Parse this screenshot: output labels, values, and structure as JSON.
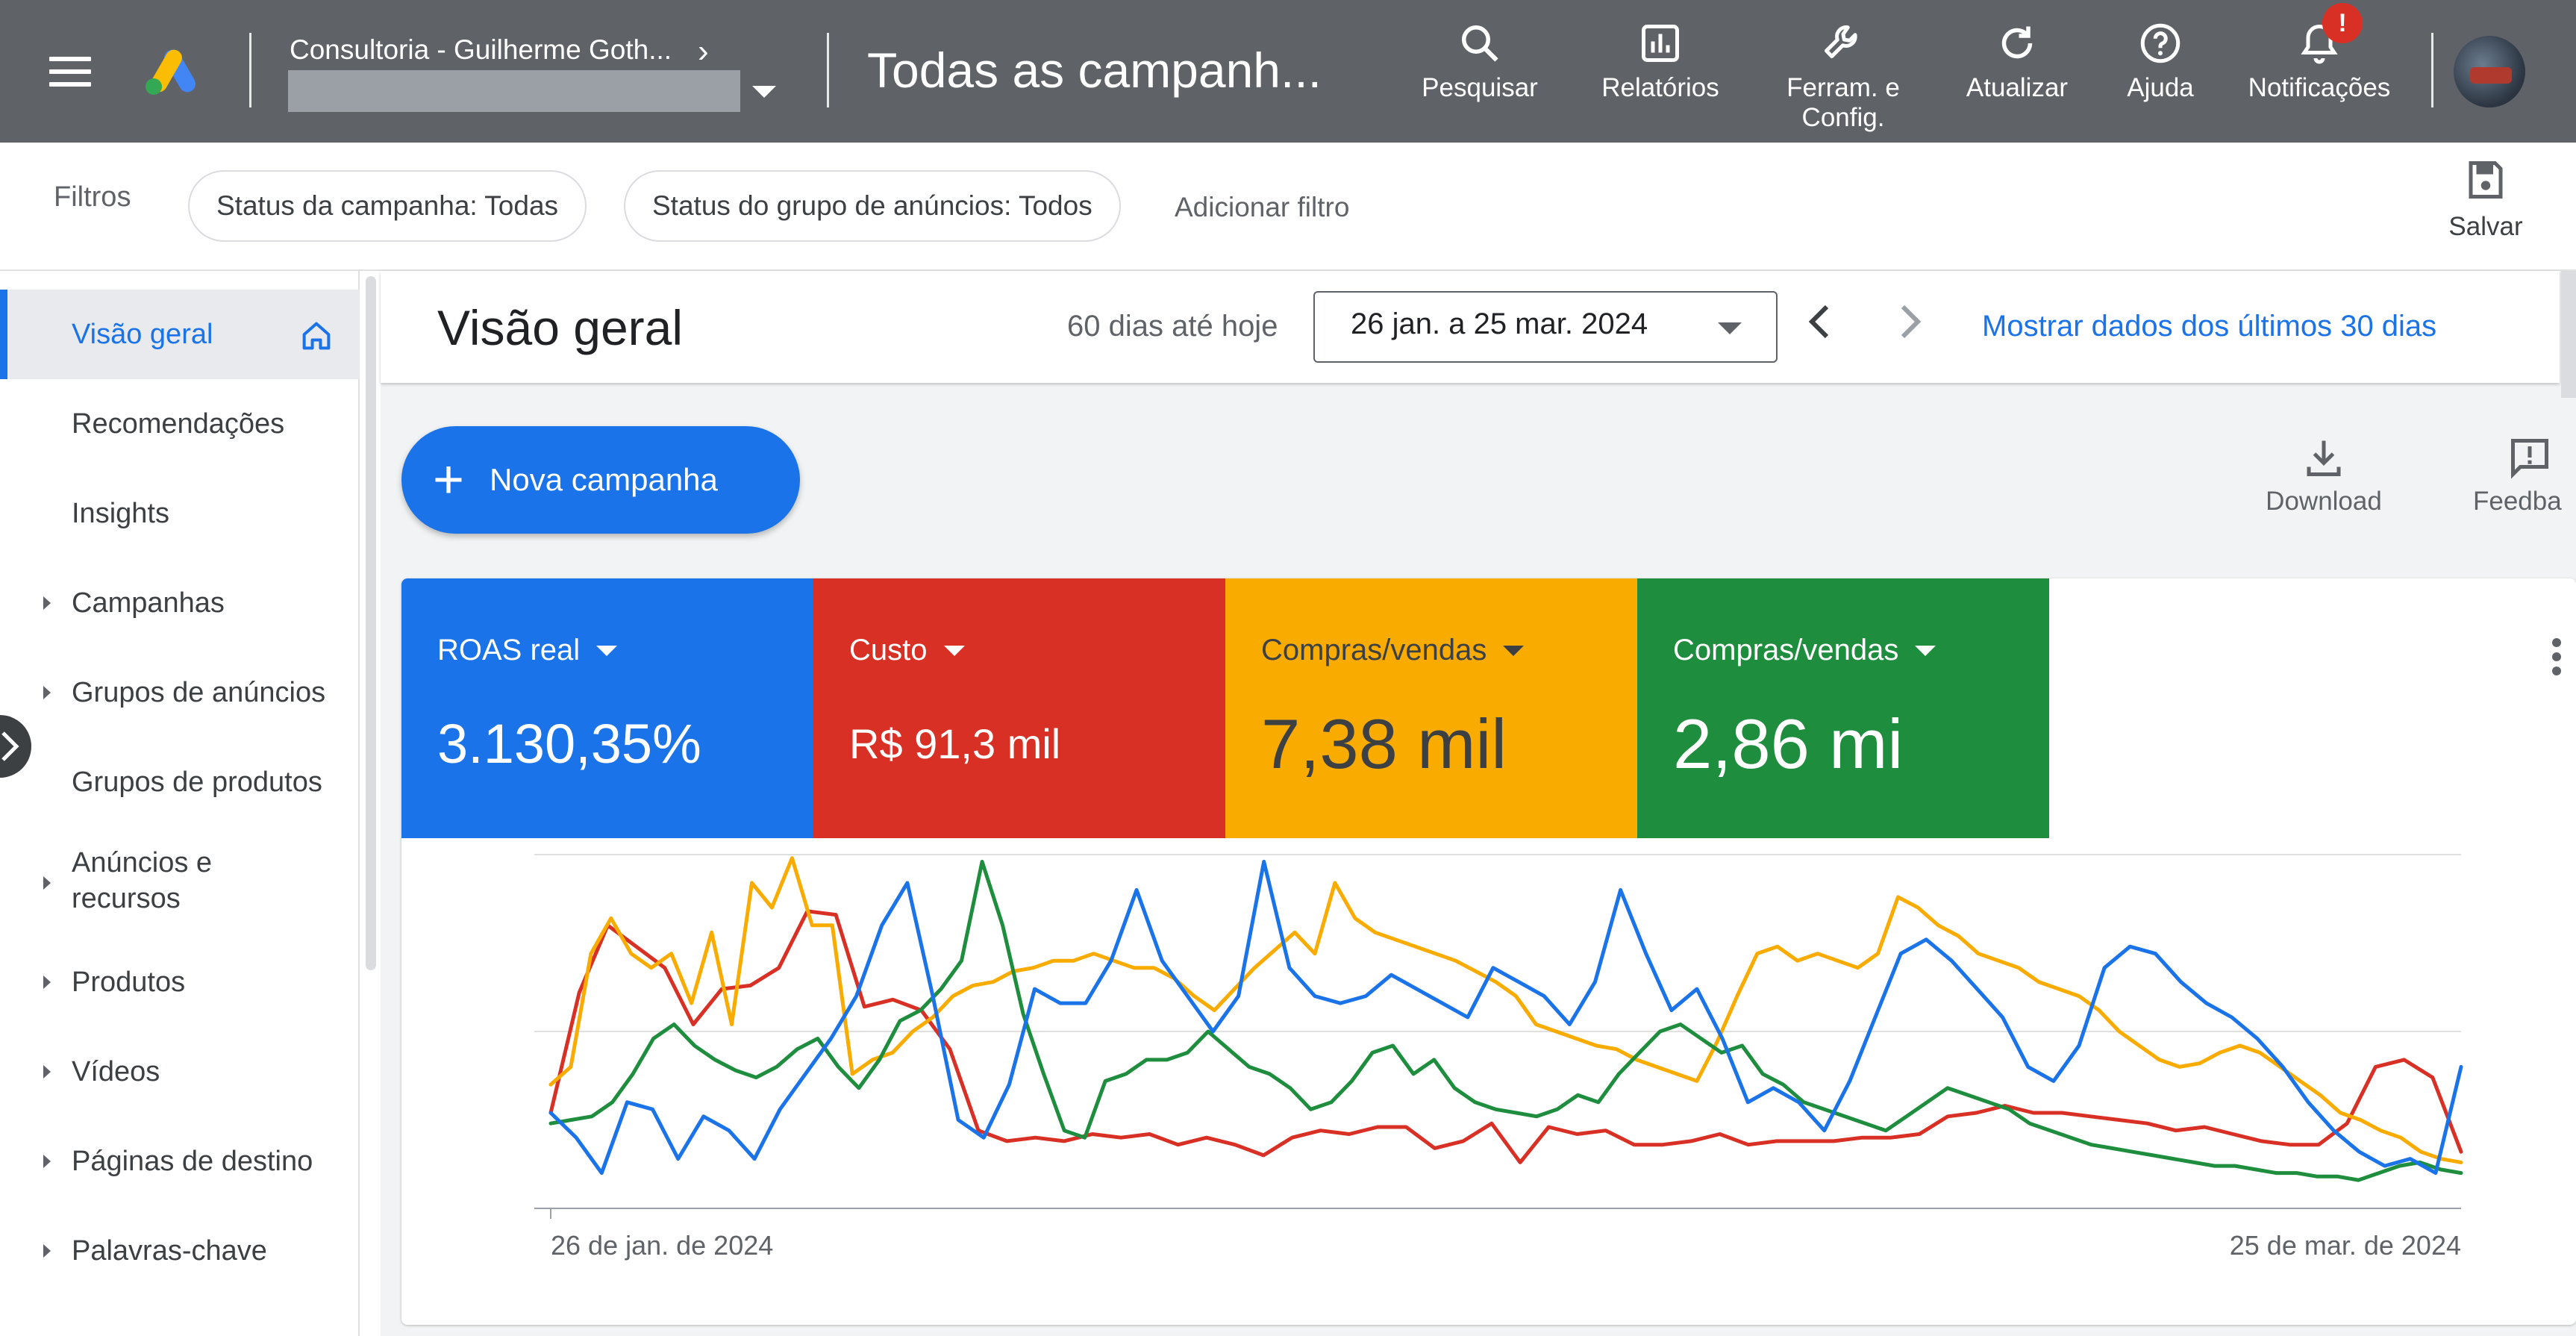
{
  "topbar": {
    "account_name": "Consultoria - Guilherme Goth...",
    "page_heading": "Todas as campanh...",
    "tools": [
      {
        "label": "Pesquisar",
        "icon": "search-icon"
      },
      {
        "label": "Relatórios",
        "icon": "reports-icon"
      },
      {
        "label": "Ferram. e Config.",
        "icon": "wrench-icon"
      },
      {
        "label": "Atualizar",
        "icon": "refresh-icon"
      },
      {
        "label": "Ajuda",
        "icon": "help-icon"
      },
      {
        "label": "Notificações",
        "icon": "bell-icon"
      }
    ],
    "notification_badge": "!"
  },
  "filterbar": {
    "label": "Filtros",
    "chips": [
      "Status da campanha: Todas",
      "Status do grupo de anúncios: Todos"
    ],
    "add_filter": "Adicionar filtro",
    "save_label": "Salvar"
  },
  "sidebar": {
    "items": [
      {
        "label": "Visão geral",
        "active": true,
        "expandable": false
      },
      {
        "label": "Recomendações",
        "active": false,
        "expandable": false
      },
      {
        "label": "Insights",
        "active": false,
        "expandable": false
      },
      {
        "label": "Campanhas",
        "active": false,
        "expandable": true
      },
      {
        "label": "Grupos de anúncios",
        "active": false,
        "expandable": true
      },
      {
        "label": "Grupos de produtos",
        "active": false,
        "expandable": false
      },
      {
        "label": "Anúncios e recursos",
        "active": false,
        "expandable": true
      },
      {
        "label": "Produtos",
        "active": false,
        "expandable": true
      },
      {
        "label": "Vídeos",
        "active": false,
        "expandable": true
      },
      {
        "label": "Páginas de destino",
        "active": false,
        "expandable": true
      },
      {
        "label": "Palavras-chave",
        "active": false,
        "expandable": true
      }
    ]
  },
  "overview": {
    "title": "Visão geral",
    "range_label": "60 dias até hoje",
    "date_range": "26 jan. a 25 mar. 2024",
    "last30_link": "Mostrar dados dos últimos 30 dias",
    "new_campaign": "Nova campanha",
    "download_label": "Download",
    "feedback_label": "Feedba"
  },
  "metrics": [
    {
      "label": "ROAS real",
      "value": "3.130,35%",
      "color": "#1a73e8"
    },
    {
      "label": "Custo",
      "value": "R$ 91,3 mil",
      "color": "#d93025"
    },
    {
      "label": "Compras/vendas",
      "value": "7,38 mil",
      "color": "#f9ab00"
    },
    {
      "label": "Compras/vendas",
      "value": "2,86 mi",
      "color": "#1e8e3e"
    }
  ],
  "chart_data": {
    "type": "line",
    "x_start": "26 de jan. de 2024",
    "x_end": "25 de mar. de 2024",
    "x_ticks": [
      "26 de jan. de 2024",
      "25 de mar. de 2024"
    ],
    "grid": true,
    "normalized": true,
    "ylim": [
      0,
      100
    ],
    "series": [
      {
        "color": "#d93025",
        "values": [
          27,
          61,
          80,
          74,
          68,
          52,
          62,
          63,
          68,
          84,
          83,
          57,
          59,
          56,
          45,
          22,
          19,
          20,
          19,
          21,
          20,
          21,
          18,
          20,
          18,
          15,
          20,
          22,
          21,
          23,
          23,
          17,
          19,
          24,
          13,
          23,
          21,
          22,
          18,
          18,
          19,
          21,
          18,
          19,
          19,
          19,
          20,
          20,
          21,
          26,
          27,
          29,
          27,
          27,
          26,
          25,
          24,
          22,
          23,
          21,
          19,
          18,
          18,
          24,
          40,
          42,
          37,
          16
        ]
      },
      {
        "color": "#f9ab00",
        "values": [
          35,
          40,
          72,
          82,
          72,
          68,
          72,
          58,
          78,
          52,
          92,
          85,
          99,
          80,
          80,
          38,
          42,
          44,
          50,
          54,
          60,
          63,
          64,
          67,
          68,
          70,
          70,
          72,
          70,
          68,
          68,
          65,
          60,
          56,
          62,
          68,
          73,
          78,
          72,
          92,
          82,
          78,
          76,
          74,
          72,
          70,
          67,
          64,
          60,
          52,
          50,
          48,
          46,
          45,
          42,
          40,
          38,
          36,
          47,
          60,
          72,
          74,
          70,
          72,
          70,
          68,
          72,
          88,
          85,
          80,
          77,
          72,
          70,
          68,
          64,
          62,
          60,
          56,
          50,
          46,
          42,
          40,
          41,
          44,
          46,
          44,
          40,
          36,
          32,
          27,
          25,
          22,
          20,
          16,
          14,
          13
        ]
      },
      {
        "color": "#1e8e3e",
        "values": [
          24,
          25,
          26,
          30,
          38,
          48,
          52,
          46,
          42,
          39,
          37,
          40,
          45,
          48,
          40,
          34,
          42,
          53,
          56,
          62,
          70,
          98,
          80,
          55,
          38,
          22,
          20,
          36,
          38,
          42,
          42,
          44,
          50,
          45,
          40,
          38,
          34,
          28,
          30,
          36,
          44,
          46,
          38,
          42,
          34,
          30,
          28,
          27,
          26,
          28,
          32,
          30,
          38,
          44,
          50,
          52,
          48,
          44,
          46,
          38,
          35,
          30,
          28,
          26,
          24,
          22,
          26,
          30,
          34,
          32,
          30,
          28,
          24,
          22,
          20,
          18,
          17,
          16,
          15,
          14,
          13,
          12,
          12,
          11,
          10,
          10,
          9,
          9,
          8,
          10,
          12,
          13,
          11,
          10
        ]
      },
      {
        "color": "#1a73e8",
        "values": [
          27,
          20,
          10,
          30,
          28,
          14,
          26,
          22,
          14,
          28,
          38,
          48,
          60,
          80,
          92,
          60,
          25,
          20,
          35,
          62,
          58,
          58,
          70,
          90,
          70,
          60,
          50,
          60,
          98,
          68,
          60,
          58,
          60,
          66,
          62,
          58,
          54,
          68,
          64,
          60,
          52,
          64,
          90,
          72,
          56,
          62,
          48,
          30,
          34,
          30,
          22,
          36,
          54,
          72,
          76,
          70,
          62,
          54,
          40,
          36,
          46,
          68,
          74,
          72,
          64,
          58,
          54,
          48,
          40,
          30,
          22,
          16,
          12,
          14,
          10,
          40
        ]
      }
    ]
  }
}
